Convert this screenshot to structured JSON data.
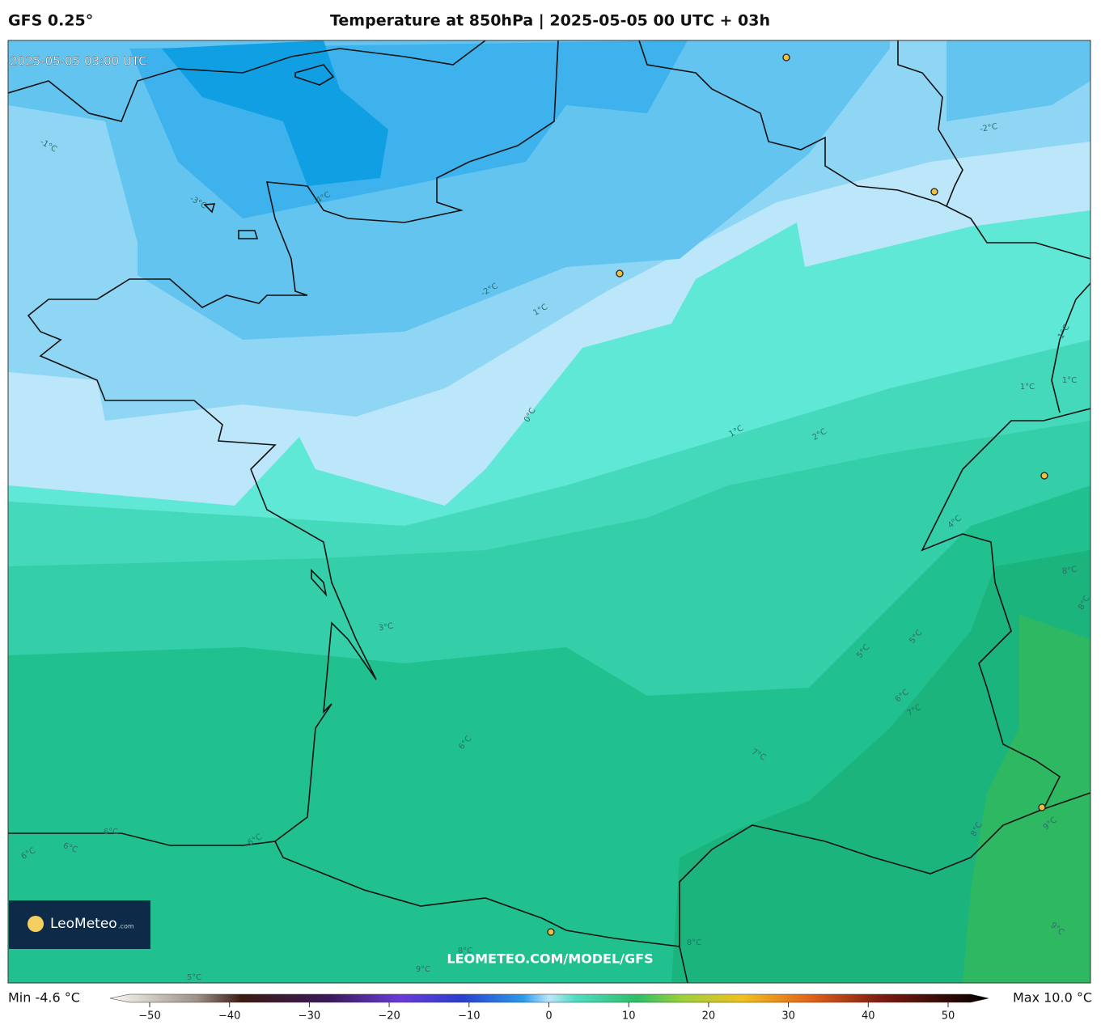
{
  "header": {
    "model": "GFS 0.25°",
    "title": "Temperature at 850hPa | 2025-05-05 00 UTC + 03h"
  },
  "map": {
    "timestamp": "2025-05-05 03:00 UTC",
    "watermark": "LEOMETEO.COM/MODEL/GFS",
    "contour_labels": [
      "-1°C",
      "-3°C",
      "-4°C",
      "-2°C",
      "-2°C",
      "1°C",
      "0°C",
      "1°C",
      "2°C",
      "1°C",
      "1°C",
      "1°C",
      "4°C",
      "3°C",
      "5°C",
      "5°C",
      "6°C",
      "7°C",
      "6°C",
      "7°C",
      "8°C",
      "8°C",
      "6°C",
      "6°C",
      "6°C",
      "6°C",
      "8°C",
      "9°C",
      "9°C",
      "8°C",
      "9°C",
      "5°C",
      "8°C"
    ]
  },
  "logo": {
    "name": "LeoMeteo",
    "suffix": ".com"
  },
  "footer": {
    "min": "Min -4.6 °C",
    "max": "Max 10.0 °C",
    "colorbar_ticks": [
      {
        "value": -50,
        "label": "−50"
      },
      {
        "value": -40,
        "label": "−40"
      },
      {
        "value": -30,
        "label": "−30"
      },
      {
        "value": -20,
        "label": "−20"
      },
      {
        "value": -10,
        "label": "−10"
      },
      0,
      10,
      20,
      30,
      40,
      50
    ]
  }
}
